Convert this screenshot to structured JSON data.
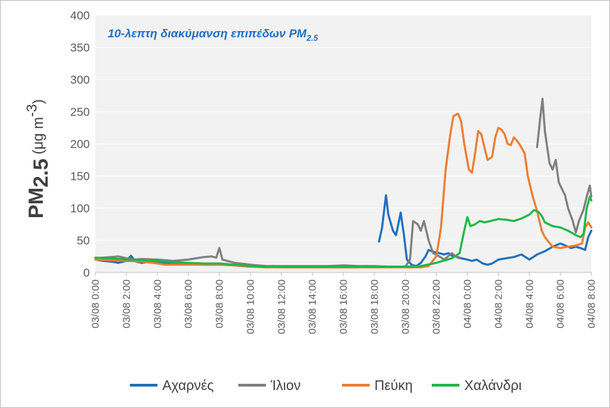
{
  "chart_data": {
    "type": "line",
    "title_main": "10-λεπτη διακύμανση επιπέδων PM",
    "title_sub": "2.5",
    "title_color": "#1f6fbf",
    "ylabel_main": "PM",
    "ylabel_sub": "2.5",
    "ylabel_unit_prefix": "(μg m",
    "ylabel_unit_sup": "-3",
    "ylabel_unit_suffix": ")",
    "ylim": [
      0,
      400
    ],
    "yticks": [
      "0",
      "50",
      "100",
      "150",
      "200",
      "250",
      "300",
      "350",
      "400"
    ],
    "xlim": [
      0,
      32
    ],
    "x_unit": "hours since 03/08 0:00",
    "xticks": [
      {
        "h": 0,
        "label": "03/08 0:00"
      },
      {
        "h": 2,
        "label": "03/08 2:00"
      },
      {
        "h": 4,
        "label": "03/08 4:00"
      },
      {
        "h": 6,
        "label": "03/08 6:00"
      },
      {
        "h": 8,
        "label": "03/08 8:00"
      },
      {
        "h": 10,
        "label": "03/08 10:00"
      },
      {
        "h": 12,
        "label": "03/08 12:00"
      },
      {
        "h": 14,
        "label": "03/08 14:00"
      },
      {
        "h": 16,
        "label": "03/08 16:00"
      },
      {
        "h": 18,
        "label": "03/08 18:00"
      },
      {
        "h": 20,
        "label": "03/08 20:00"
      },
      {
        "h": 22,
        "label": "03/08 22:00"
      },
      {
        "h": 24,
        "label": "04/08 0:00"
      },
      {
        "h": 26,
        "label": "04/08 2:00"
      },
      {
        "h": 28,
        "label": "04/08 4:00"
      },
      {
        "h": 30,
        "label": "04/08 6:00"
      },
      {
        "h": 32,
        "label": "04/08 8:00"
      }
    ],
    "grid": true,
    "legend_position": "bottom",
    "series": [
      {
        "name": "Αχαρνές",
        "color": "#1f6fbf",
        "segments": [
          [
            [
              0,
              20
            ],
            [
              0.5,
              18
            ],
            [
              1,
              17
            ],
            [
              1.5,
              15
            ],
            [
              2,
              18
            ],
            [
              2.3,
              26
            ],
            [
              2.6,
              17
            ],
            [
              3,
              15
            ],
            [
              3.5,
              17
            ],
            [
              4,
              15
            ],
            [
              5,
              13
            ],
            [
              6,
              13
            ],
            [
              7,
              12
            ],
            [
              8,
              12
            ],
            [
              9,
              11
            ],
            [
              10,
              9
            ],
            [
              11,
              9
            ],
            [
              11.5,
              10
            ],
            [
              12,
              8
            ],
            [
              13,
              8
            ],
            [
              14,
              8
            ],
            [
              15,
              8
            ],
            [
              16,
              8
            ],
            [
              17,
              8
            ],
            [
              17.5,
              10
            ]
          ],
          [
            [
              18.3,
              48
            ],
            [
              18.5,
              70
            ],
            [
              18.75,
              120
            ],
            [
              18.9,
              90
            ],
            [
              19.2,
              65
            ],
            [
              19.4,
              58
            ],
            [
              19.7,
              93
            ],
            [
              19.9,
              60
            ],
            [
              20.1,
              20
            ],
            [
              20.4,
              12
            ],
            [
              20.7,
              10
            ],
            [
              21,
              15
            ],
            [
              21.3,
              25
            ],
            [
              21.5,
              35
            ],
            [
              21.8,
              32
            ],
            [
              22.2,
              30
            ],
            [
              22.5,
              28
            ],
            [
              22.8,
              30
            ],
            [
              23,
              26
            ],
            [
              23.3,
              25
            ],
            [
              23.6,
              22
            ],
            [
              24,
              20
            ],
            [
              24.3,
              18
            ],
            [
              24.6,
              20
            ],
            [
              25,
              14
            ],
            [
              25.3,
              12
            ],
            [
              25.6,
              14
            ],
            [
              26,
              20
            ],
            [
              26.5,
              22
            ],
            [
              27,
              24
            ],
            [
              27.5,
              28
            ],
            [
              28,
              20
            ],
            [
              28.5,
              28
            ],
            [
              29,
              33
            ],
            [
              29.5,
              40
            ],
            [
              30,
              45
            ],
            [
              30.3,
              42
            ],
            [
              30.7,
              38
            ],
            [
              31,
              40
            ],
            [
              31.3,
              38
            ],
            [
              31.6,
              35
            ],
            [
              31.8,
              55
            ],
            [
              32,
              65
            ]
          ]
        ]
      },
      {
        "name": "Ίλιον",
        "color": "#7f7f7f",
        "segments": [
          [
            [
              0,
              22
            ],
            [
              0.5,
              23
            ],
            [
              1,
              24
            ],
            [
              1.5,
              25
            ],
            [
              2,
              22
            ],
            [
              2.5,
              20
            ],
            [
              3,
              21
            ],
            [
              4,
              20
            ],
            [
              5,
              18
            ],
            [
              6,
              20
            ],
            [
              6.5,
              22
            ],
            [
              7,
              24
            ],
            [
              7.5,
              25
            ],
            [
              7.8,
              23
            ],
            [
              8,
              38
            ],
            [
              8.2,
              20
            ],
            [
              9,
              15
            ],
            [
              10,
              12
            ],
            [
              11,
              10
            ],
            [
              12,
              10
            ],
            [
              13,
              10
            ],
            [
              14,
              10
            ],
            [
              15,
              10
            ],
            [
              16,
              11
            ],
            [
              17,
              10
            ],
            [
              18,
              10
            ],
            [
              19,
              9
            ],
            [
              20,
              9
            ],
            [
              20.3,
              20
            ],
            [
              20.5,
              80
            ],
            [
              20.8,
              75
            ],
            [
              21,
              65
            ],
            [
              21.2,
              80
            ],
            [
              21.5,
              50
            ],
            [
              21.8,
              30
            ],
            [
              22.2,
              25
            ],
            [
              22.5,
              20
            ],
            [
              23,
              30
            ],
            [
              23.3,
              24
            ],
            [
              23.5,
              22
            ]
          ],
          [
            [
              28.5,
              195
            ],
            [
              28.7,
              240
            ],
            [
              28.85,
              270
            ],
            [
              29,
              220
            ],
            [
              29.3,
              170
            ],
            [
              29.5,
              160
            ],
            [
              29.7,
              175
            ],
            [
              29.9,
              140
            ],
            [
              30.1,
              130
            ],
            [
              30.3,
              120
            ],
            [
              30.5,
              100
            ],
            [
              30.8,
              80
            ],
            [
              31,
              62
            ],
            [
              31.2,
              80
            ],
            [
              31.5,
              98
            ],
            [
              31.7,
              118
            ],
            [
              31.9,
              135
            ],
            [
              32,
              118
            ]
          ]
        ]
      },
      {
        "name": "Πεύκη",
        "color": "#ed7d31",
        "segments": [
          [
            [
              0,
              20
            ],
            [
              1,
              19
            ],
            [
              2,
              18
            ],
            [
              3,
              17
            ],
            [
              4,
              14
            ],
            [
              4.5,
              12
            ],
            [
              5,
              12
            ],
            [
              6,
              12
            ],
            [
              7,
              12
            ],
            [
              8,
              12
            ],
            [
              9,
              11
            ],
            [
              10,
              9
            ],
            [
              11,
              8
            ],
            [
              12,
              8
            ],
            [
              13,
              8
            ],
            [
              14,
              8
            ],
            [
              15,
              8
            ],
            [
              16,
              8
            ],
            [
              17,
              8
            ],
            [
              18,
              8
            ],
            [
              19,
              8
            ],
            [
              20,
              8
            ],
            [
              21,
              8
            ],
            [
              21.5,
              10
            ],
            [
              22,
              25
            ],
            [
              22.3,
              70
            ],
            [
              22.6,
              160
            ],
            [
              22.9,
              215
            ],
            [
              23.1,
              243
            ],
            [
              23.4,
              247
            ],
            [
              23.6,
              235
            ],
            [
              23.8,
              200
            ],
            [
              24.1,
              160
            ],
            [
              24.3,
              155
            ],
            [
              24.5,
              185
            ],
            [
              24.7,
              220
            ],
            [
              24.9,
              215
            ],
            [
              25.1,
              195
            ],
            [
              25.3,
              175
            ],
            [
              25.6,
              180
            ],
            [
              25.8,
              210
            ],
            [
              26,
              225
            ],
            [
              26.2,
              222
            ],
            [
              26.4,
              215
            ],
            [
              26.6,
              200
            ],
            [
              26.8,
              198
            ],
            [
              27,
              210
            ],
            [
              27.2,
              205
            ],
            [
              27.4,
              198
            ],
            [
              27.7,
              185
            ],
            [
              27.9,
              150
            ],
            [
              28.2,
              120
            ],
            [
              28.5,
              95
            ],
            [
              28.8,
              65
            ],
            [
              29,
              55
            ],
            [
              29.5,
              40
            ],
            [
              30,
              38
            ],
            [
              30.5,
              40
            ],
            [
              31,
              42
            ],
            [
              31.4,
              45
            ],
            [
              31.6,
              70
            ],
            [
              31.8,
              78
            ],
            [
              32,
              70
            ]
          ]
        ]
      },
      {
        "name": "Χαλάνδρι",
        "color": "#1eb845",
        "segments": [
          [
            [
              0,
              23
            ],
            [
              1,
              22
            ],
            [
              2,
              20
            ],
            [
              3,
              19
            ],
            [
              4,
              18
            ],
            [
              5,
              16
            ],
            [
              6,
              15
            ],
            [
              7,
              14
            ],
            [
              8,
              14
            ],
            [
              9,
              12
            ],
            [
              10,
              10
            ],
            [
              11,
              9
            ],
            [
              12,
              9
            ],
            [
              13,
              9
            ],
            [
              14,
              9
            ],
            [
              15,
              9
            ],
            [
              16,
              9
            ],
            [
              17,
              9
            ],
            [
              18,
              9
            ],
            [
              19,
              9
            ],
            [
              20,
              9
            ],
            [
              21,
              10
            ],
            [
              22,
              15
            ],
            [
              23,
              22
            ],
            [
              23.5,
              30
            ],
            [
              23.8,
              65
            ],
            [
              24,
              86
            ],
            [
              24.2,
              72
            ],
            [
              24.5,
              75
            ],
            [
              24.8,
              80
            ],
            [
              25.1,
              78
            ],
            [
              25.5,
              80
            ],
            [
              26,
              83
            ],
            [
              26.5,
              82
            ],
            [
              27,
              80
            ],
            [
              27.5,
              84
            ],
            [
              28,
              90
            ],
            [
              28.3,
              97
            ],
            [
              28.6,
              94
            ],
            [
              28.8,
              88
            ],
            [
              29,
              78
            ],
            [
              29.5,
              72
            ],
            [
              30,
              70
            ],
            [
              30.5,
              65
            ],
            [
              31,
              58
            ],
            [
              31.3,
              55
            ],
            [
              31.5,
              60
            ],
            [
              31.7,
              100
            ],
            [
              31.9,
              118
            ],
            [
              32,
              112
            ]
          ]
        ]
      }
    ]
  }
}
